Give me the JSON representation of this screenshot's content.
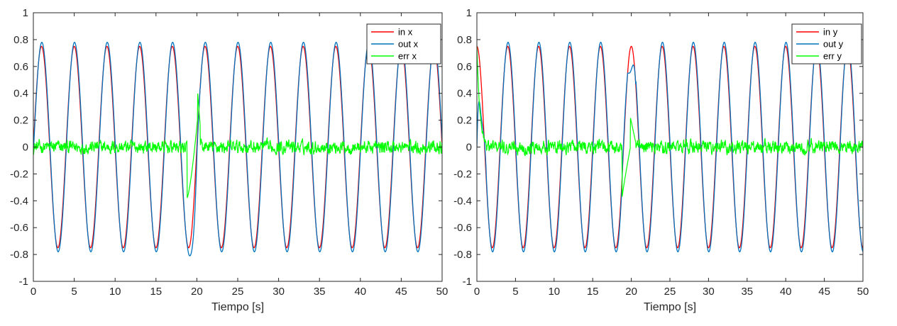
{
  "chart_data": [
    {
      "type": "line",
      "title": "",
      "xlabel": "Tiempo [s]",
      "ylabel": "",
      "xlim": [
        0,
        50
      ],
      "ylim": [
        -1,
        1
      ],
      "xticks": [
        "0",
        "5",
        "10",
        "15",
        "20",
        "25",
        "30",
        "35",
        "40",
        "45",
        "50"
      ],
      "yticks": [
        "-1",
        "-0.8",
        "-0.6",
        "-0.4",
        "-0.2",
        "0",
        "0.2",
        "0.4",
        "0.6",
        "0.8",
        "1"
      ],
      "grid": false,
      "legend_position": "top-right",
      "signal": {
        "amplitude": 0.75,
        "period_s": 4,
        "waveform": "sine",
        "phase_deg": 0
      },
      "disturbance": {
        "time_range_s": [
          18.8,
          20.4
        ],
        "out_min": -0.84,
        "err_min": -0.38,
        "err_max": 0.42
      },
      "noise_band": 0.07,
      "series": [
        {
          "name": "in x",
          "color": "#ff0000"
        },
        {
          "name": "out x",
          "color": "#0072bd"
        },
        {
          "name": "err x",
          "color": "#00ff00"
        }
      ]
    },
    {
      "type": "line",
      "title": "",
      "xlabel": "Tiempo [s]",
      "ylabel": "",
      "xlim": [
        0,
        50
      ],
      "ylim": [
        -1,
        1
      ],
      "xticks": [
        "0",
        "5",
        "10",
        "15",
        "20",
        "25",
        "30",
        "35",
        "40",
        "45",
        "50"
      ],
      "yticks": [
        "-1",
        "-0.8",
        "-0.6",
        "-0.4",
        "-0.2",
        "0",
        "0.2",
        "0.4",
        "0.6",
        "0.8",
        "1"
      ],
      "grid": false,
      "legend_position": "top-right",
      "signal": {
        "amplitude": 0.75,
        "period_s": 4,
        "waveform": "cosine",
        "phase_deg": 90
      },
      "disturbance": {
        "time_range_s": [
          18.8,
          20.6
        ],
        "out_peak": 0.55,
        "err_min": -0.38,
        "err_max": 0.22
      },
      "noise_band": 0.07,
      "series": [
        {
          "name": "in y",
          "color": "#ff0000"
        },
        {
          "name": "out y",
          "color": "#0072bd"
        },
        {
          "name": "err y",
          "color": "#00ff00"
        }
      ]
    }
  ]
}
